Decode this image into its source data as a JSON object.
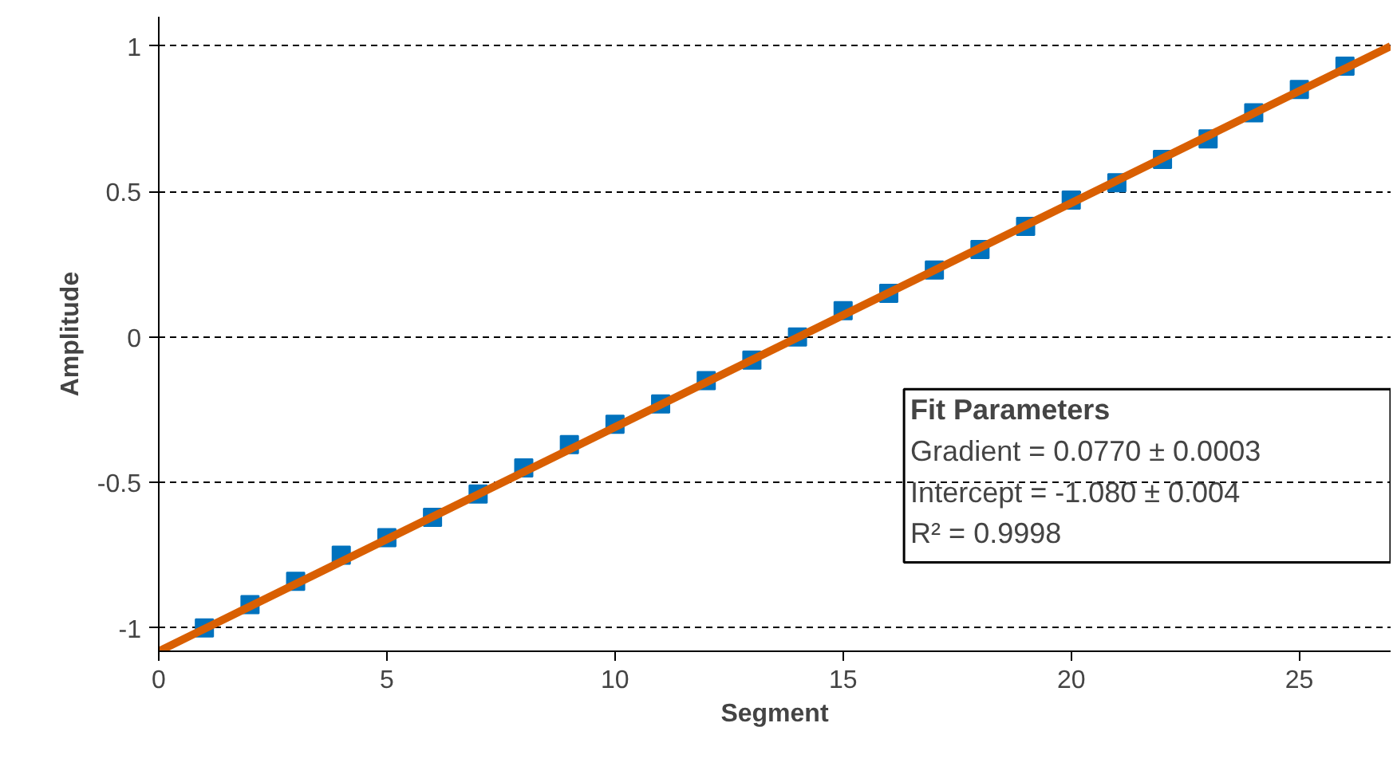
{
  "chart_data": {
    "type": "scatter",
    "xlabel": "Segment",
    "ylabel": "Amplitude",
    "x": [
      1,
      2,
      3,
      4,
      5,
      6,
      7,
      8,
      9,
      10,
      11,
      12,
      13,
      14,
      15,
      16,
      17,
      18,
      19,
      20,
      21,
      22,
      23,
      24,
      25,
      26
    ],
    "series": [
      {
        "color": "#0072bd",
        "marker": "square",
        "values": [
          -1.0,
          -0.92,
          -0.84,
          -0.75,
          -0.69,
          -0.62,
          -0.54,
          -0.45,
          -0.37,
          -0.3,
          -0.23,
          -0.15,
          -0.08,
          0.0,
          0.09,
          0.15,
          0.23,
          0.3,
          0.38,
          0.47,
          0.53,
          0.61,
          0.68,
          0.77,
          0.85,
          0.93
        ]
      },
      {
        "type": "line",
        "color": "#d95f02",
        "x": [
          0,
          27
        ],
        "values": [
          -1.08,
          0.999
        ],
        "line_style": "solid"
      }
    ],
    "xlim": [
      0,
      27
    ],
    "ylim": [
      -1.08,
      1.1
    ],
    "xticks": [
      0,
      5,
      10,
      15,
      20,
      25
    ],
    "yticks": [
      -1,
      -0.5,
      0,
      0.5,
      1
    ],
    "grid": "y",
    "annotations": [
      "Fit Parameters",
      "Gradient = 0.0770 ± 0.0003",
      "Intercept = -1.080 ± 0.004",
      "R² = 0.9998"
    ]
  }
}
